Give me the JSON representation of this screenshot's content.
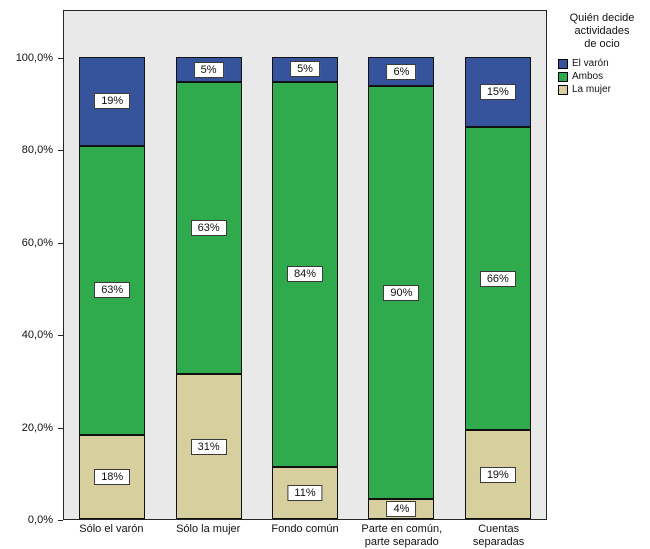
{
  "chart_data": {
    "type": "bar",
    "stacked": true,
    "percent_stacked": true,
    "title": "",
    "legend_title": "Quién decide actividades de ocio",
    "legend_position": "right",
    "grid": false,
    "categories": [
      "Sólo el varón",
      "Sólo la mujer",
      "Fondo común",
      "Parte en común, parte separado",
      "Cuentas separadas"
    ],
    "series": [
      {
        "name": "La mujer",
        "color": "#d8cf9e",
        "values": [
          18,
          31,
          11,
          4,
          19
        ]
      },
      {
        "name": "Ambos",
        "color": "#2fab4e",
        "values": [
          63,
          63,
          84,
          90,
          66
        ]
      },
      {
        "name": "El varón",
        "color": "#35549b",
        "values": [
          19,
          5,
          5,
          6,
          15
        ]
      }
    ],
    "legend_order_top_to_bottom": [
      "El varón",
      "Ambos",
      "La mujer"
    ],
    "y_ticks": [
      "0,0%",
      "20,0%",
      "40,0%",
      "60,0%",
      "80,0%",
      "100,0%"
    ],
    "y_tick_values": [
      0,
      20,
      40,
      60,
      80,
      100
    ],
    "ylim": [
      0,
      100
    ],
    "plot_background": "#e9e9e9"
  }
}
